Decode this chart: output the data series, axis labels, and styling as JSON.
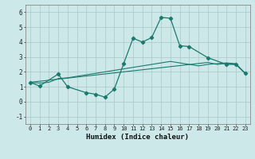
{
  "xlabel": "Humidex (Indice chaleur)",
  "x_main": [
    0,
    1,
    3,
    4,
    6,
    7,
    8,
    9,
    10,
    11,
    12,
    13,
    14,
    15,
    16,
    17,
    19,
    21,
    22,
    23
  ],
  "y_main": [
    1.3,
    1.05,
    1.85,
    1.0,
    0.6,
    0.5,
    0.3,
    0.85,
    2.55,
    4.25,
    4.0,
    4.3,
    5.65,
    5.6,
    3.75,
    3.7,
    2.95,
    2.5,
    2.5,
    1.9
  ],
  "x_trend1": [
    0,
    1,
    2,
    3,
    4,
    5,
    6,
    7,
    8,
    9,
    10,
    11,
    12,
    13,
    14,
    15,
    16,
    17,
    18,
    19,
    20,
    21,
    22,
    23
  ],
  "y_trend1": [
    1.3,
    1.37,
    1.44,
    1.51,
    1.58,
    1.65,
    1.72,
    1.79,
    1.86,
    1.93,
    2.0,
    2.07,
    2.14,
    2.21,
    2.28,
    2.35,
    2.42,
    2.49,
    2.56,
    2.63,
    2.5,
    2.57,
    2.5,
    1.9
  ],
  "x_trend2": [
    0,
    1,
    2,
    3,
    4,
    5,
    6,
    7,
    8,
    9,
    10,
    11,
    12,
    13,
    14,
    15,
    16,
    17,
    18,
    19,
    20,
    21,
    22,
    23
  ],
  "y_trend2": [
    1.3,
    1.25,
    1.3,
    1.55,
    1.6,
    1.7,
    1.8,
    1.9,
    2.0,
    2.1,
    2.2,
    2.3,
    2.4,
    2.5,
    2.6,
    2.7,
    2.6,
    2.5,
    2.4,
    2.5,
    2.55,
    2.6,
    2.55,
    1.9
  ],
  "bg_color": "#cde8e8",
  "line_color": "#1a7a6e",
  "grid_color": "#a8c8c8",
  "ylim": [
    -1.5,
    6.5
  ],
  "xlim": [
    -0.5,
    23.5
  ],
  "yticks": [
    -1,
    0,
    1,
    2,
    3,
    4,
    5,
    6
  ],
  "xticks": [
    0,
    1,
    2,
    3,
    4,
    5,
    6,
    7,
    8,
    9,
    10,
    11,
    12,
    13,
    14,
    15,
    16,
    17,
    18,
    19,
    20,
    21,
    22,
    23
  ]
}
